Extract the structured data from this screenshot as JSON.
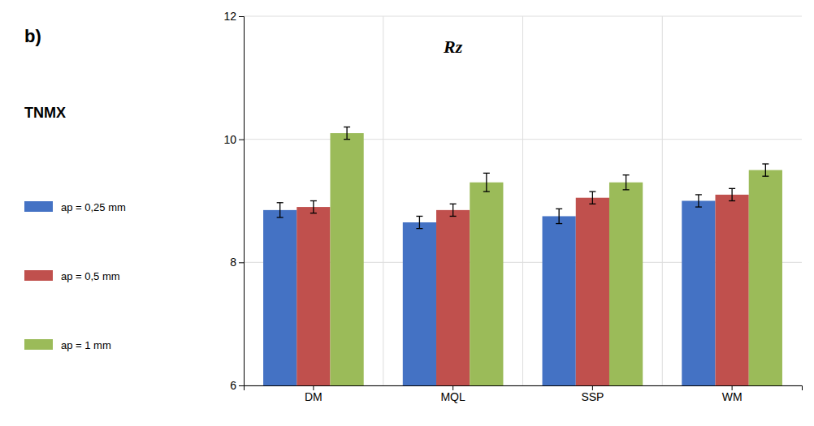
{
  "chart_data": {
    "type": "bar",
    "annotations": [
      "b)",
      "TNMX",
      "Rz"
    ],
    "categories": [
      "DM",
      "MQL",
      "SSP",
      "WM"
    ],
    "series": [
      {
        "name": "ap = 0,25 mm",
        "color": "#4472C4",
        "values": [
          8.85,
          8.65,
          8.75,
          9.0
        ],
        "errors": [
          0.12,
          0.1,
          0.12,
          0.1
        ]
      },
      {
        "name": "ap = 0,5 mm",
        "color": "#C0504D",
        "values": [
          8.9,
          8.85,
          9.05,
          9.1
        ],
        "errors": [
          0.1,
          0.1,
          0.1,
          0.1
        ]
      },
      {
        "name": "ap = 1 mm",
        "color": "#9BBB59",
        "values": [
          10.1,
          9.3,
          9.3,
          9.5
        ],
        "errors": [
          0.1,
          0.15,
          0.12,
          0.1
        ]
      }
    ],
    "ylim": [
      6,
      12
    ],
    "yticks": [
      6,
      8,
      10,
      12
    ],
    "grid": true,
    "legend": "left"
  }
}
